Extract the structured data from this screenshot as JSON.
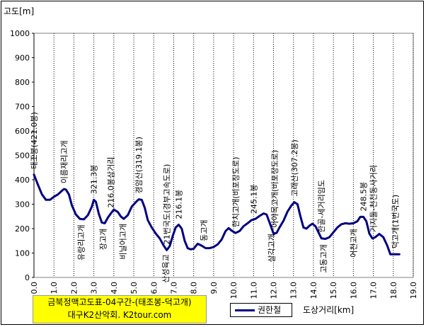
{
  "chart_data": {
    "type": "line",
    "title": "",
    "ylabel": "고도[m]",
    "xlabel": "도상거리[km]",
    "ylim": [
      0,
      1000
    ],
    "xlim": [
      0,
      19
    ],
    "yticks": [
      0,
      100,
      200,
      300,
      400,
      500,
      600,
      700,
      800,
      900,
      1000
    ],
    "xticks": [
      "0.0",
      "1.0",
      "2.0",
      "3.0",
      "4.0",
      "5.0",
      "6.0",
      "7.0",
      "8.0",
      "9.0",
      "10.0",
      "11.0",
      "12.0",
      "13.0",
      "14.0",
      "15.0",
      "16.0",
      "17.0",
      "18.0",
      "19.0"
    ],
    "grid": "vertical",
    "legend_position": "bottom",
    "series": [
      {
        "name": "권한철",
        "color": "#000080",
        "points": [
          [
            0.0,
            421
          ],
          [
            0.2,
            380
          ],
          [
            0.4,
            340
          ],
          [
            0.6,
            318
          ],
          [
            0.8,
            318
          ],
          [
            1.0,
            330
          ],
          [
            1.2,
            340
          ],
          [
            1.4,
            355
          ],
          [
            1.5,
            362
          ],
          [
            1.6,
            360
          ],
          [
            1.75,
            340
          ],
          [
            1.9,
            295
          ],
          [
            2.1,
            258
          ],
          [
            2.3,
            240
          ],
          [
            2.5,
            238
          ],
          [
            2.7,
            255
          ],
          [
            2.9,
            290
          ],
          [
            3.0,
            318
          ],
          [
            3.1,
            310
          ],
          [
            3.25,
            260
          ],
          [
            3.4,
            225
          ],
          [
            3.55,
            222
          ],
          [
            3.7,
            245
          ],
          [
            3.85,
            262
          ],
          [
            4.0,
            278
          ],
          [
            4.2,
            268
          ],
          [
            4.35,
            250
          ],
          [
            4.5,
            240
          ],
          [
            4.7,
            255
          ],
          [
            4.9,
            290
          ],
          [
            5.1,
            308
          ],
          [
            5.25,
            320
          ],
          [
            5.4,
            318
          ],
          [
            5.55,
            285
          ],
          [
            5.7,
            235
          ],
          [
            5.9,
            205
          ],
          [
            6.1,
            180
          ],
          [
            6.3,
            160
          ],
          [
            6.5,
            130
          ],
          [
            6.65,
            112
          ],
          [
            6.8,
            128
          ],
          [
            6.95,
            170
          ],
          [
            7.1,
            205
          ],
          [
            7.25,
            216
          ],
          [
            7.4,
            200
          ],
          [
            7.55,
            150
          ],
          [
            7.7,
            120
          ],
          [
            7.85,
            115
          ],
          [
            8.0,
            118
          ],
          [
            8.2,
            138
          ],
          [
            8.4,
            130
          ],
          [
            8.6,
            120
          ],
          [
            8.8,
            120
          ],
          [
            9.0,
            125
          ],
          [
            9.2,
            135
          ],
          [
            9.4,
            155
          ],
          [
            9.6,
            190
          ],
          [
            9.75,
            202
          ],
          [
            9.9,
            192
          ],
          [
            10.1,
            182
          ],
          [
            10.3,
            190
          ],
          [
            10.5,
            210
          ],
          [
            10.7,
            222
          ],
          [
            10.9,
            235
          ],
          [
            11.1,
            240
          ],
          [
            11.3,
            252
          ],
          [
            11.5,
            262
          ],
          [
            11.65,
            258
          ],
          [
            11.8,
            225
          ],
          [
            12.0,
            180
          ],
          [
            12.15,
            182
          ],
          [
            12.3,
            205
          ],
          [
            12.5,
            232
          ],
          [
            12.7,
            270
          ],
          [
            12.9,
            295
          ],
          [
            13.05,
            308
          ],
          [
            13.2,
            300
          ],
          [
            13.35,
            250
          ],
          [
            13.5,
            205
          ],
          [
            13.65,
            200
          ],
          [
            13.8,
            212
          ],
          [
            13.95,
            220
          ],
          [
            14.1,
            210
          ],
          [
            14.25,
            185
          ],
          [
            14.4,
            160
          ],
          [
            14.6,
            158
          ],
          [
            14.8,
            165
          ],
          [
            15.0,
            185
          ],
          [
            15.2,
            205
          ],
          [
            15.4,
            218
          ],
          [
            15.6,
            222
          ],
          [
            15.8,
            220
          ],
          [
            16.0,
            222
          ],
          [
            16.2,
            230
          ],
          [
            16.35,
            248
          ],
          [
            16.5,
            248
          ],
          [
            16.65,
            230
          ],
          [
            16.8,
            180
          ],
          [
            16.95,
            160
          ],
          [
            17.1,
            165
          ],
          [
            17.3,
            178
          ],
          [
            17.5,
            165
          ],
          [
            17.7,
            130
          ],
          [
            17.85,
            95
          ],
          [
            18.1,
            95
          ],
          [
            18.3,
            95
          ]
        ]
      }
    ],
    "annotations": [
      {
        "text": "태조봉(421.0봉)",
        "x": 0.0,
        "side": "up"
      },
      {
        "text": "이름재리고개",
        "x": 1.5,
        "side": "up"
      },
      {
        "text": "유랑리고개",
        "x": 2.35,
        "side": "down"
      },
      {
        "text": "321.3봉",
        "x": 3.0,
        "side": "up"
      },
      {
        "text": "장고개",
        "x": 3.45,
        "side": "down"
      },
      {
        "text": "216.0봉삼거리",
        "x": 3.85,
        "side": "up"
      },
      {
        "text": "비닐어고개",
        "x": 4.45,
        "side": "down"
      },
      {
        "text": "경암산(319.1봉)",
        "x": 5.25,
        "side": "up"
      },
      {
        "text": "산성육교",
        "x": 6.6,
        "side": "down"
      },
      {
        "text": "21번국도(경부고속도로)",
        "x": 6.65,
        "side": "up"
      },
      {
        "text": "216.1봉",
        "x": 7.25,
        "side": "up"
      },
      {
        "text": "동고개",
        "x": 8.5,
        "side": "up"
      },
      {
        "text": "한치고개(비포장도로)",
        "x": 10.1,
        "side": "up"
      },
      {
        "text": "245.1봉",
        "x": 11.0,
        "side": "up"
      },
      {
        "text": "살각고개",
        "x": 11.9,
        "side": "down"
      },
      {
        "text": "아야목고개(비포장도로)",
        "x": 12.05,
        "side": "up"
      },
      {
        "text": "고래산(307.2봉)",
        "x": 13.05,
        "side": "up"
      },
      {
        "text": "한골-세거리임도",
        "x": 14.4,
        "side": "up"
      },
      {
        "text": "고동고개",
        "x": 14.5,
        "side": "down"
      },
      {
        "text": "어천고개",
        "x": 16.0,
        "side": "down"
      },
      {
        "text": "248.5봉",
        "x": 16.5,
        "side": "up"
      },
      {
        "text": "거지둘-천천동사거리",
        "x": 17.0,
        "side": "up"
      },
      {
        "text": "덕고개(1번국도)",
        "x": 18.1,
        "side": "up"
      }
    ],
    "note": [
      "금북정맥고도표-04구간-(태조봉-덕고개)",
      "대구K2산악회. K2tour.com"
    ]
  }
}
